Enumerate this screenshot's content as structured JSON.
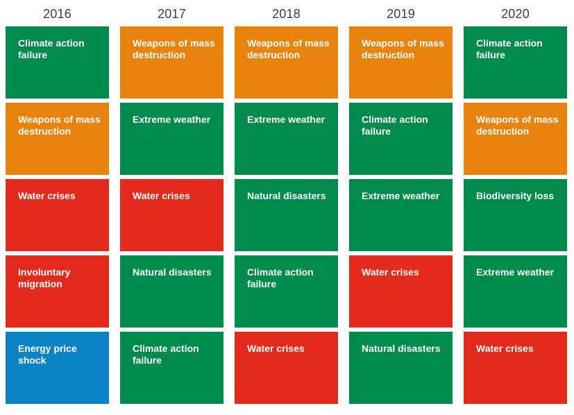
{
  "colors": {
    "green": "#008a4c",
    "orange": "#e8830d",
    "red": "#e32a1c",
    "blue": "#0b83c5",
    "header_text": "#3d3d3d",
    "tile_text": "#ffffff",
    "background": "#ffffff"
  },
  "chart_data": {
    "type": "table",
    "description": "Top 5 risks ranked per year (rank 1 at top); tile color encodes risk category",
    "years": [
      "2016",
      "2017",
      "2018",
      "2019",
      "2020"
    ],
    "columns": [
      {
        "year": "2016",
        "risks": [
          {
            "rank": 1,
            "label": "Climate action failure",
            "category": "green"
          },
          {
            "rank": 2,
            "label": "Weapons of mass destruction",
            "category": "orange"
          },
          {
            "rank": 3,
            "label": "Water crises",
            "category": "red"
          },
          {
            "rank": 4,
            "label": "Involuntary migration",
            "category": "red"
          },
          {
            "rank": 5,
            "label": "Energy price shock",
            "category": "blue"
          }
        ]
      },
      {
        "year": "2017",
        "risks": [
          {
            "rank": 1,
            "label": "Weapons of mass destruction",
            "category": "orange"
          },
          {
            "rank": 2,
            "label": "Extreme weather",
            "category": "green"
          },
          {
            "rank": 3,
            "label": "Water crises",
            "category": "red"
          },
          {
            "rank": 4,
            "label": "Natural disasters",
            "category": "green"
          },
          {
            "rank": 5,
            "label": "Climate action failure",
            "category": "green"
          }
        ]
      },
      {
        "year": "2018",
        "risks": [
          {
            "rank": 1,
            "label": "Weapons of mass destruction",
            "category": "orange"
          },
          {
            "rank": 2,
            "label": "Extreme weather",
            "category": "green"
          },
          {
            "rank": 3,
            "label": "Natural disasters",
            "category": "green"
          },
          {
            "rank": 4,
            "label": "Climate action failure",
            "category": "green"
          },
          {
            "rank": 5,
            "label": "Water crises",
            "category": "red"
          }
        ]
      },
      {
        "year": "2019",
        "risks": [
          {
            "rank": 1,
            "label": "Weapons of mass destruction",
            "category": "orange"
          },
          {
            "rank": 2,
            "label": "Climate action failure",
            "category": "green"
          },
          {
            "rank": 3,
            "label": "Extreme weather",
            "category": "green"
          },
          {
            "rank": 4,
            "label": "Water crises",
            "category": "red"
          },
          {
            "rank": 5,
            "label": "Natural disasters",
            "category": "green"
          }
        ]
      },
      {
        "year": "2020",
        "risks": [
          {
            "rank": 1,
            "label": "Climate action failure",
            "category": "green"
          },
          {
            "rank": 2,
            "label": "Weapons of mass destruction",
            "category": "orange"
          },
          {
            "rank": 3,
            "label": "Biodiversity loss",
            "category": "green"
          },
          {
            "rank": 4,
            "label": "Extreme weather",
            "category": "green"
          },
          {
            "rank": 5,
            "label": "Water crises",
            "category": "red"
          }
        ]
      }
    ]
  }
}
